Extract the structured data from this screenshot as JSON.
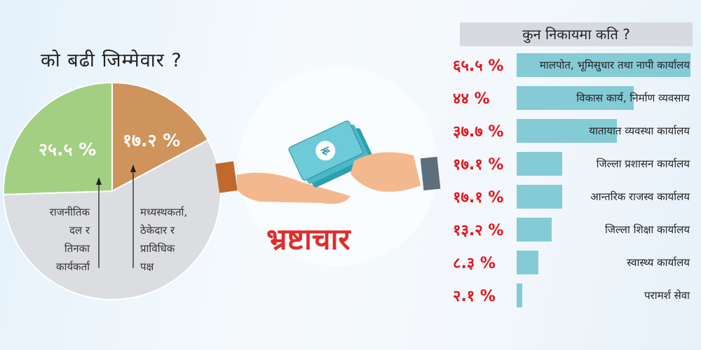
{
  "chart_data": [
    {
      "type": "pie",
      "title": "को बढी जिम्मेवार ?",
      "slices": [
        {
          "label": "राजनीतिक दल र तिनका कार्यकर्ता",
          "value": 25.5,
          "value_label": "२५.५ %",
          "color": "#a3cf82"
        },
        {
          "label": "मध्यस्थकर्ता, ठेकेदार र प्राविधिक पक्ष",
          "value": 17.2,
          "value_label": "१७.२ %",
          "color": "#cf935c"
        },
        {
          "label": "",
          "value": 57.3,
          "value_label": "",
          "color": "#dcdde1"
        }
      ],
      "notes": [
        [
          "राजनीतिक",
          "दल र",
          "तिनका",
          "कार्यकर्ता"
        ],
        [
          "मध्यस्थकर्ता,",
          "ठेकेदार र",
          "प्राविधिक",
          "पक्ष"
        ]
      ]
    },
    {
      "type": "bar",
      "orientation": "horizontal",
      "title": "कुन निकायमा कति ?",
      "color": "#84cbd5",
      "categories": [
        "मालपोत, भूमिसुधार तथा नापी कार्यालय",
        "विकास कार्य, निर्माण व्यवसाय",
        "यातायात व्यवस्था कार्यालय",
        "जिल्ला प्रशासन कार्यालय",
        "आन्तरिक राजस्व कार्यालय",
        "जिल्ला शिक्षा कार्यालय",
        "स्वास्थ्य कार्यालय",
        "परामर्श सेवा"
      ],
      "values": [
        65.5,
        44,
        37.7,
        17.1,
        17.1,
        13.2,
        8.3,
        2.1
      ],
      "value_labels": [
        "६५.५ %",
        "४४ %",
        "३७.७ %",
        "१७.१ %",
        "१७.१ %",
        "१३.२ %",
        "८.३ %",
        "२.१ %"
      ],
      "xlim": [
        0,
        65.5
      ]
    }
  ],
  "illustration": {
    "word": "भ्रष्टाचार",
    "currency_symbol": "रू",
    "accent": "#e32b2b"
  }
}
